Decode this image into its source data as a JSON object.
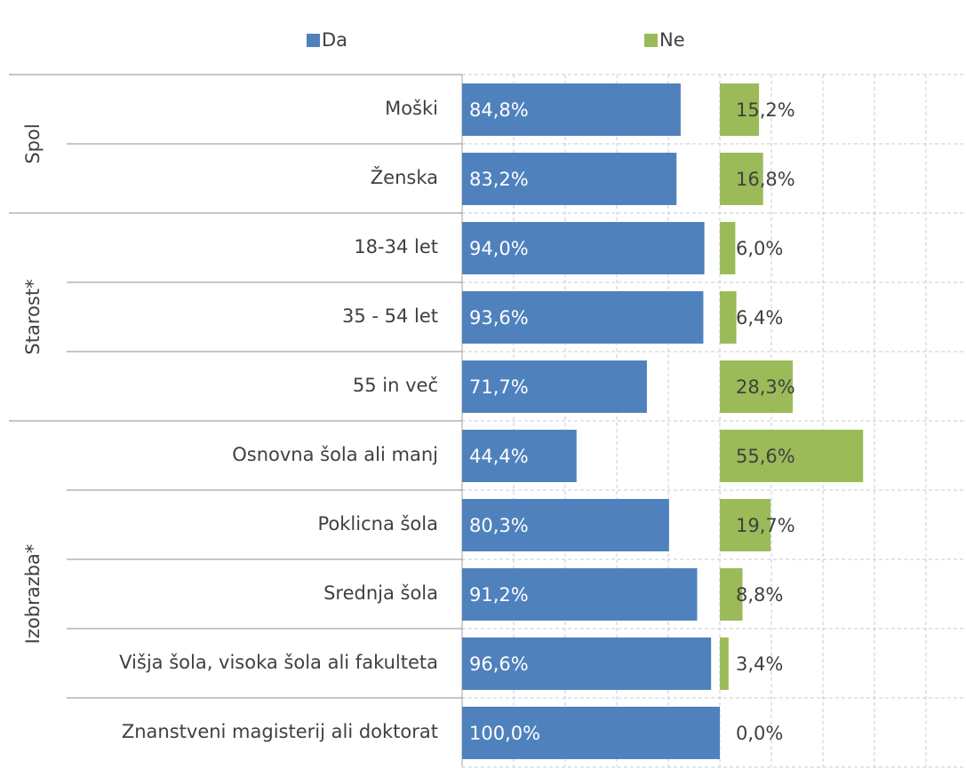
{
  "chart_data": {
    "type": "bar",
    "orientation": "horizontal",
    "groups": [
      {
        "name": "Spol",
        "categories": [
          "Moški",
          "Ženska"
        ]
      },
      {
        "name": "Starost*",
        "categories": [
          "18-34 let",
          "35 - 54 let",
          "55 in več"
        ]
      },
      {
        "name": "Izobrazba*",
        "categories": [
          "Osnovna šola ali manj",
          "Poklicna šola",
          "Srednja šola",
          "Višja šola, visoka šola ali fakulteta",
          "Znanstveni magisterij ali doktorat"
        ]
      }
    ],
    "series": [
      {
        "name": "Da",
        "color": "#4f81bd",
        "values": [
          84.8,
          83.2,
          94.0,
          93.6,
          71.7,
          44.4,
          80.3,
          91.2,
          96.6,
          100.0
        ],
        "value_labels": [
          "84,8%",
          "83,2%",
          "94,0%",
          "93,6%",
          "71,7%",
          "44,4%",
          "80,3%",
          "91,2%",
          "96,6%",
          "100,0%"
        ]
      },
      {
        "name": "Ne",
        "color": "#9bbb59",
        "values": [
          15.2,
          16.8,
          6.0,
          6.4,
          28.3,
          55.6,
          19.7,
          8.8,
          3.4,
          0.0
        ],
        "value_labels": [
          "15,2%",
          "16,8%",
          "6,0%",
          "6,4%",
          "28,3%",
          "55,6%",
          "19,7%",
          "8,8%",
          "3,4%",
          "0,0%"
        ]
      }
    ],
    "xlim": [
      0,
      100
    ],
    "xticks": [
      0,
      20,
      40,
      60,
      80,
      100
    ],
    "grid": true,
    "legend": "top"
  }
}
